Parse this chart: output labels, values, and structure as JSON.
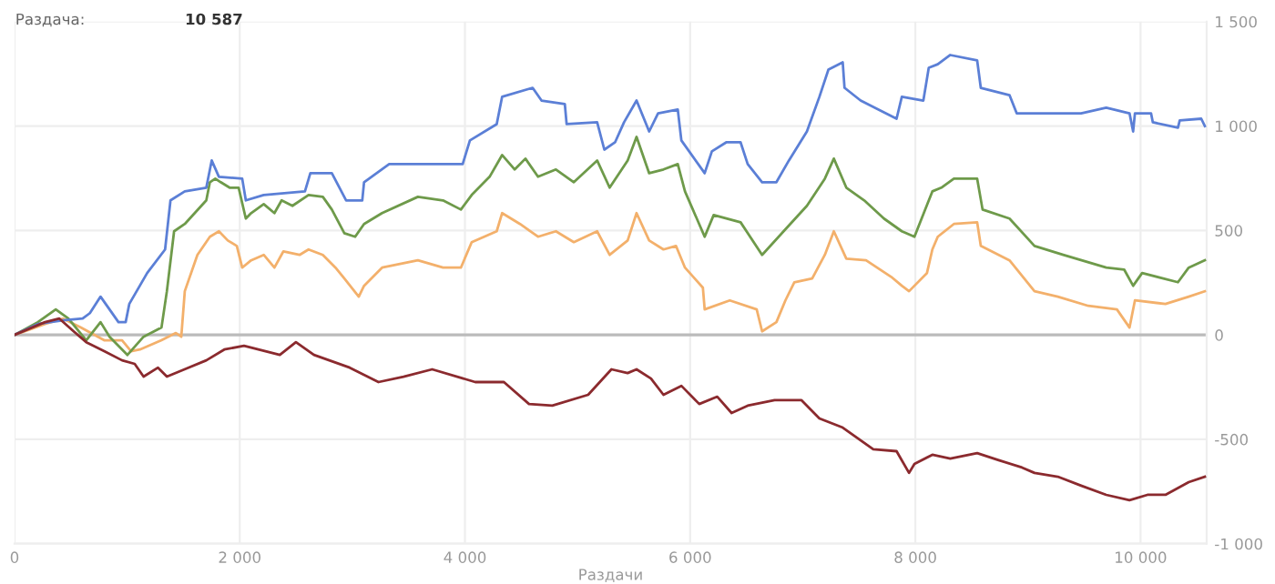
{
  "chart_data": {
    "type": "line",
    "xlabel": "Раздачи",
    "annotations": [
      "Раздача:",
      "10 587"
    ],
    "xlim": [
      0,
      10587
    ],
    "xticks": [
      0,
      {
        "value": 2000,
        "label": "2 000"
      },
      {
        "value": 4000,
        "label": "4 000"
      },
      {
        "value": 6000,
        "label": "6 000"
      },
      {
        "value": 8000,
        "label": "8 000"
      },
      {
        "value": 10000,
        "label": "10 000"
      }
    ],
    "ylim": [
      -1000,
      1500
    ],
    "yticks": [
      {
        "value": -1000,
        "label": "-1 000"
      },
      {
        "value": -500,
        "label": "-500"
      },
      0,
      500,
      {
        "value": 1000,
        "label": "1 000"
      },
      {
        "value": 1500,
        "label": "1 500"
      }
    ],
    "grid": true,
    "marker": "none",
    "line_style": "solid",
    "ref_lines": [
      {
        "axis": "y",
        "value": 0,
        "color": "#bbbbbb"
      }
    ],
    "series": [
      {
        "color": "#f3b06b",
        "x": [
          0,
          271,
          430,
          589,
          796,
          955,
          1035,
          1114,
          1305,
          1433,
          1481,
          1512,
          1624,
          1735,
          1815,
          1894,
          1974,
          2022,
          2101,
          2213,
          2308,
          2388,
          2531,
          2611,
          2738,
          2850,
          2929,
          3057,
          3104,
          3264,
          3582,
          3805,
          3964,
          4060,
          4282,
          4330,
          4489,
          4649,
          4808,
          4967,
          5174,
          5285,
          5445,
          5524,
          5636,
          5763,
          5874,
          5954,
          6113,
          6129,
          6352,
          6591,
          6639,
          6766,
          6846,
          6925,
          7084,
          7196,
          7276,
          7387,
          7562,
          7785,
          7880,
          7944,
          8103,
          8151,
          8199,
          8342,
          8549,
          8581,
          8836,
          9058,
          9265,
          9536,
          9790,
          9902,
          9950,
          10221,
          10428,
          10571
        ],
        "values": [
          0,
          52,
          78,
          35,
          -26,
          -26,
          -78,
          -70,
          -26,
          9,
          -9,
          209,
          383,
          470,
          496,
          452,
          426,
          322,
          357,
          383,
          322,
          400,
          383,
          409,
          383,
          322,
          270,
          183,
          235,
          322,
          357,
          322,
          322,
          444,
          496,
          583,
          531,
          470,
          496,
          444,
          496,
          383,
          452,
          583,
          452,
          409,
          426,
          322,
          226,
          122,
          165,
          122,
          17,
          61,
          165,
          252,
          270,
          383,
          496,
          365,
          357,
          278,
          235,
          209,
          296,
          409,
          470,
          531,
          539,
          426,
          357,
          209,
          183,
          139,
          122,
          35,
          165,
          148,
          183,
          209
        ]
      },
      {
        "color": "#6e9a4a",
        "x": [
          0,
          207,
          366,
          478,
          637,
          764,
          844,
          1003,
          1146,
          1305,
          1353,
          1417,
          1512,
          1703,
          1735,
          1783,
          1831,
          1910,
          1990,
          2054,
          2101,
          2213,
          2308,
          2372,
          2468,
          2611,
          2738,
          2818,
          2929,
          3025,
          3104,
          3264,
          3582,
          3805,
          3964,
          4060,
          4219,
          4330,
          4442,
          4537,
          4649,
          4808,
          4967,
          5174,
          5285,
          5445,
          5524,
          5636,
          5763,
          5890,
          5954,
          6129,
          6209,
          6448,
          6639,
          6830,
          7037,
          7196,
          7276,
          7387,
          7546,
          7721,
          7880,
          7992,
          8151,
          8231,
          8342,
          8549,
          8597,
          8836,
          9058,
          9313,
          9695,
          9854,
          9934,
          10014,
          10332,
          10428,
          10571
        ],
        "values": [
          0,
          61,
          122,
          78,
          -26,
          61,
          -9,
          -96,
          -9,
          35,
          209,
          496,
          531,
          644,
          731,
          748,
          731,
          705,
          705,
          557,
          583,
          626,
          583,
          644,
          618,
          670,
          661,
          600,
          487,
          470,
          531,
          583,
          661,
          644,
          600,
          670,
          757,
          861,
          792,
          844,
          757,
          792,
          731,
          835,
          705,
          835,
          948,
          774,
          792,
          818,
          687,
          470,
          574,
          539,
          383,
          496,
          618,
          748,
          844,
          705,
          644,
          557,
          496,
          470,
          687,
          705,
          748,
          748,
          600,
          557,
          426,
          383,
          322,
          313,
          235,
          296,
          252,
          322,
          357
        ]
      },
      {
        "color": "#5b7fd6",
        "x": [
          0,
          207,
          430,
          605,
          669,
          764,
          923,
          987,
          1019,
          1178,
          1337,
          1385,
          1512,
          1703,
          1751,
          1815,
          2022,
          2054,
          2213,
          2579,
          2627,
          2818,
          2945,
          3088,
          3104,
          3327,
          3980,
          4044,
          4282,
          4330,
          4601,
          4680,
          4887,
          4903,
          5174,
          5238,
          5333,
          5413,
          5524,
          5636,
          5715,
          5890,
          5922,
          6129,
          6193,
          6320,
          6448,
          6511,
          6639,
          6766,
          6877,
          7037,
          7148,
          7228,
          7355,
          7371,
          7514,
          7673,
          7833,
          7880,
          8071,
          8119,
          8199,
          8310,
          8549,
          8581,
          8836,
          8900,
          9154,
          9472,
          9695,
          9902,
          9934,
          9950,
          10093,
          10109,
          10332,
          10348,
          10539,
          10571
        ],
        "values": [
          0,
          52,
          70,
          78,
          104,
          183,
          61,
          61,
          148,
          296,
          409,
          644,
          687,
          705,
          835,
          757,
          748,
          644,
          670,
          687,
          774,
          774,
          644,
          644,
          731,
          818,
          818,
          931,
          1009,
          1140,
          1183,
          1122,
          1105,
          1009,
          1018,
          887,
          922,
          1018,
          1122,
          974,
          1061,
          1079,
          931,
          774,
          879,
          922,
          922,
          818,
          731,
          731,
          835,
          974,
          1140,
          1270,
          1305,
          1183,
          1122,
          1079,
          1035,
          1140,
          1122,
          1279,
          1296,
          1340,
          1314,
          1183,
          1148,
          1061,
          1061,
          1061,
          1088,
          1061,
          974,
          1061,
          1061,
          1018,
          992,
          1027,
          1035,
          1000
        ]
      },
      {
        "color": "#8b2a2e",
        "x": [
          0,
          271,
          398,
          525,
          637,
          796,
          955,
          1067,
          1146,
          1274,
          1353,
          1544,
          1703,
          1863,
          2038,
          2229,
          2356,
          2499,
          2659,
          2977,
          3232,
          3455,
          3709,
          4091,
          4346,
          4569,
          4776,
          5094,
          5301,
          5445,
          5524,
          5652,
          5763,
          5922,
          6081,
          6241,
          6368,
          6511,
          6750,
          6989,
          7148,
          7355,
          7626,
          7833,
          7944,
          7992,
          8151,
          8310,
          8549,
          8740,
          8947,
          9058,
          9265,
          9472,
          9695,
          9902,
          10061,
          10221,
          10428,
          10571
        ],
        "values": [
          0,
          61,
          78,
          17,
          -35,
          -78,
          -122,
          -139,
          -200,
          -157,
          -200,
          -157,
          -122,
          -70,
          -52,
          -78,
          -96,
          -35,
          -96,
          -157,
          -226,
          -200,
          -165,
          -226,
          -226,
          -331,
          -339,
          -287,
          -165,
          -183,
          -165,
          -209,
          -287,
          -244,
          -331,
          -296,
          -374,
          -339,
          -313,
          -313,
          -400,
          -444,
          -548,
          -557,
          -661,
          -618,
          -574,
          -592,
          -566,
          -600,
          -635,
          -661,
          -679,
          -722,
          -766,
          -792,
          -766,
          -766,
          -705,
          -679
        ]
      }
    ]
  }
}
